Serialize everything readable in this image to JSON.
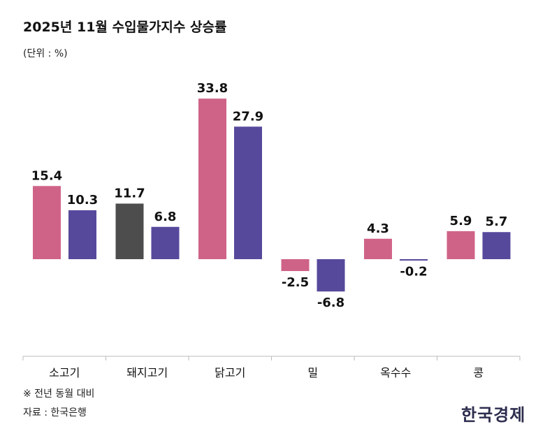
{
  "header": {
    "title": "2025년 11월 수입물가지수 상승률",
    "unit": "(단위 : %)"
  },
  "footer": {
    "note": "※ 전년 동월 대비",
    "source": "자료 : 한국은행",
    "brand": "한국경제"
  },
  "colors": {
    "pink": "#cf6387",
    "purple": "#56499c",
    "dark": "#4d4d4d",
    "axis": "#bbbbbb"
  },
  "chart_data": {
    "type": "bar",
    "title": "2025년 11월 수입물가지수 상승률",
    "ylabel": "%",
    "ylim": [
      -11,
      36
    ],
    "categories": [
      "소고기",
      "돼지고기",
      "닭고기",
      "밀",
      "옥수수",
      "콩"
    ],
    "series": [
      {
        "name": "series-1",
        "values": [
          15.4,
          11.7,
          33.8,
          -2.5,
          4.3,
          5.9
        ],
        "labels": [
          "15.4",
          "11.7",
          "33.8",
          "-2.5",
          "4.3",
          "5.9"
        ]
      },
      {
        "name": "series-2",
        "values": [
          10.3,
          6.8,
          27.9,
          -6.8,
          -0.2,
          5.7
        ],
        "labels": [
          "10.3",
          "6.8",
          "27.9",
          "-6.8",
          "-0.2",
          "5.7"
        ]
      }
    ],
    "bar_colors": [
      [
        "pink",
        "purple"
      ],
      [
        "dark",
        "purple"
      ],
      [
        "pink",
        "purple"
      ],
      [
        "pink",
        "purple"
      ],
      [
        "pink",
        "purple"
      ],
      [
        "pink",
        "purple"
      ]
    ]
  }
}
